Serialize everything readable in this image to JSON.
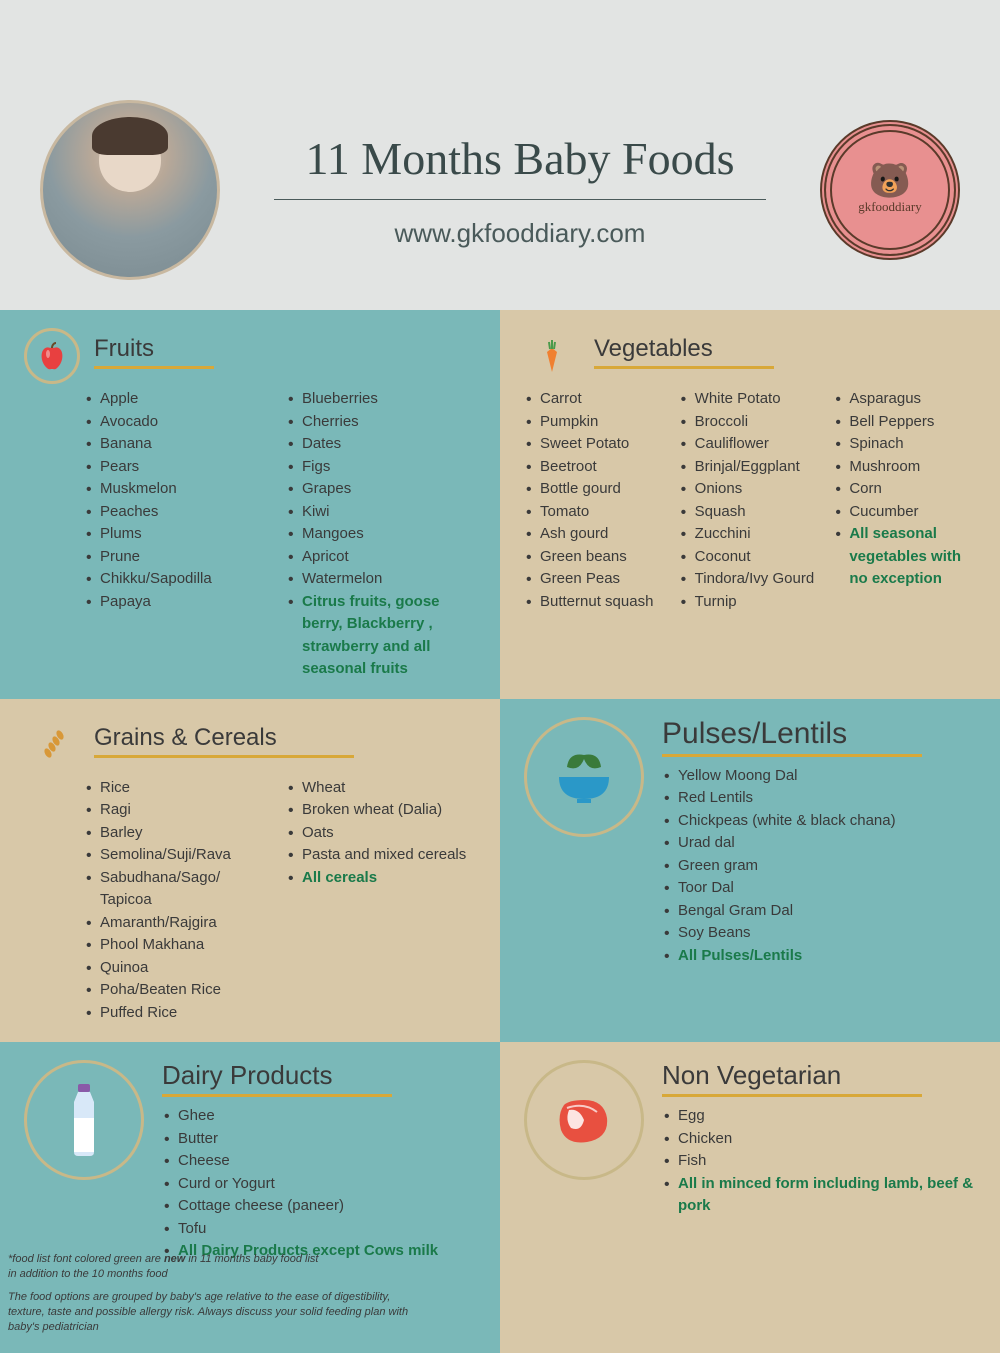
{
  "header": {
    "title": "11 Months Baby Foods",
    "url": "www.gkfooddiary.com",
    "logo_text": "gkfooddiary"
  },
  "colors": {
    "teal": "#7ab8b8",
    "beige": "#d8c8a8",
    "bg": "#e2e4e3",
    "rule": "#d8a838",
    "highlight": "#1a7a4a",
    "ring": "#c8b888"
  },
  "sections": {
    "fruits": {
      "title": "Fruits",
      "col1": [
        "Apple",
        "Avocado",
        "Banana",
        "Pears",
        "Muskmelon",
        "Peaches",
        "Plums",
        "Prune",
        "Chikku/Sapodilla",
        "Papaya"
      ],
      "col2": [
        "Blueberries",
        "Cherries",
        "Dates",
        "Figs",
        "Grapes",
        "Kiwi",
        "Mangoes",
        "Apricot",
        "Watermelon"
      ],
      "hl": "Citrus fruits, goose berry, Blackberry , strawberry and all seasonal fruits"
    },
    "vegetables": {
      "title": "Vegetables",
      "col1": [
        "Carrot",
        "Pumpkin",
        "Sweet Potato",
        "Beetroot",
        "Bottle gourd",
        "Tomato",
        "Ash gourd",
        "Green beans",
        "Green Peas",
        "Butternut squash"
      ],
      "col2": [
        "White Potato",
        "Broccoli",
        "Cauliflower",
        "Brinjal/Eggplant",
        "Onions",
        "Squash",
        "Zucchini",
        "Coconut",
        "Tindora/Ivy Gourd",
        "Turnip"
      ],
      "col3": [
        "Asparagus",
        "Bell Peppers",
        "Spinach",
        "Mushroom",
        "Corn",
        "Cucumber"
      ],
      "hl": "All seasonal vegetables with no exception"
    },
    "grains": {
      "title": "Grains & Cereals",
      "col1": [
        "Rice",
        "Ragi",
        "Barley",
        "Semolina/Suji/Rava",
        "Sabudhana/Sago/ Tapicoa",
        "Amaranth/Rajgira",
        "Phool Makhana",
        "Quinoa",
        "Poha/Beaten Rice",
        "Puffed Rice"
      ],
      "col2": [
        "Wheat",
        "Broken wheat (Dalia)",
        " Oats",
        "Pasta and mixed cereals"
      ],
      "hl": "All cereals"
    },
    "pulses": {
      "title": "Pulses/Lentils",
      "items": [
        "Yellow Moong Dal",
        "Red Lentils",
        "Chickpeas (white & black chana)",
        "Urad dal",
        "Green gram",
        "Toor Dal",
        "Bengal Gram Dal",
        "Soy Beans"
      ],
      "hl": "All Pulses/Lentils"
    },
    "dairy": {
      "title": "Dairy Products",
      "items": [
        "Ghee",
        "Butter",
        "Cheese",
        "Curd or Yogurt",
        "Cottage cheese (paneer)",
        "Tofu"
      ],
      "hl": "All Dairy Products except Cows milk"
    },
    "nonveg": {
      "title": "Non Vegetarian",
      "items": [
        "Egg",
        "Chicken",
        "Fish"
      ],
      "hl": "All in minced form including lamb, beef & pork"
    }
  },
  "footnotes": {
    "note1_a": "*food list font colored green are ",
    "note1_b": "new",
    "note1_c": " in 11 months baby food list",
    "note1_d": "in addition to the 10 months food",
    "note2_a": "The food options are grouped by baby's age relative to the ease of digestibility,",
    "note2_b": "texture, taste and possible allergy risk. Always discuss your solid feeding plan with",
    "note2_c": "baby's pediatrician"
  }
}
